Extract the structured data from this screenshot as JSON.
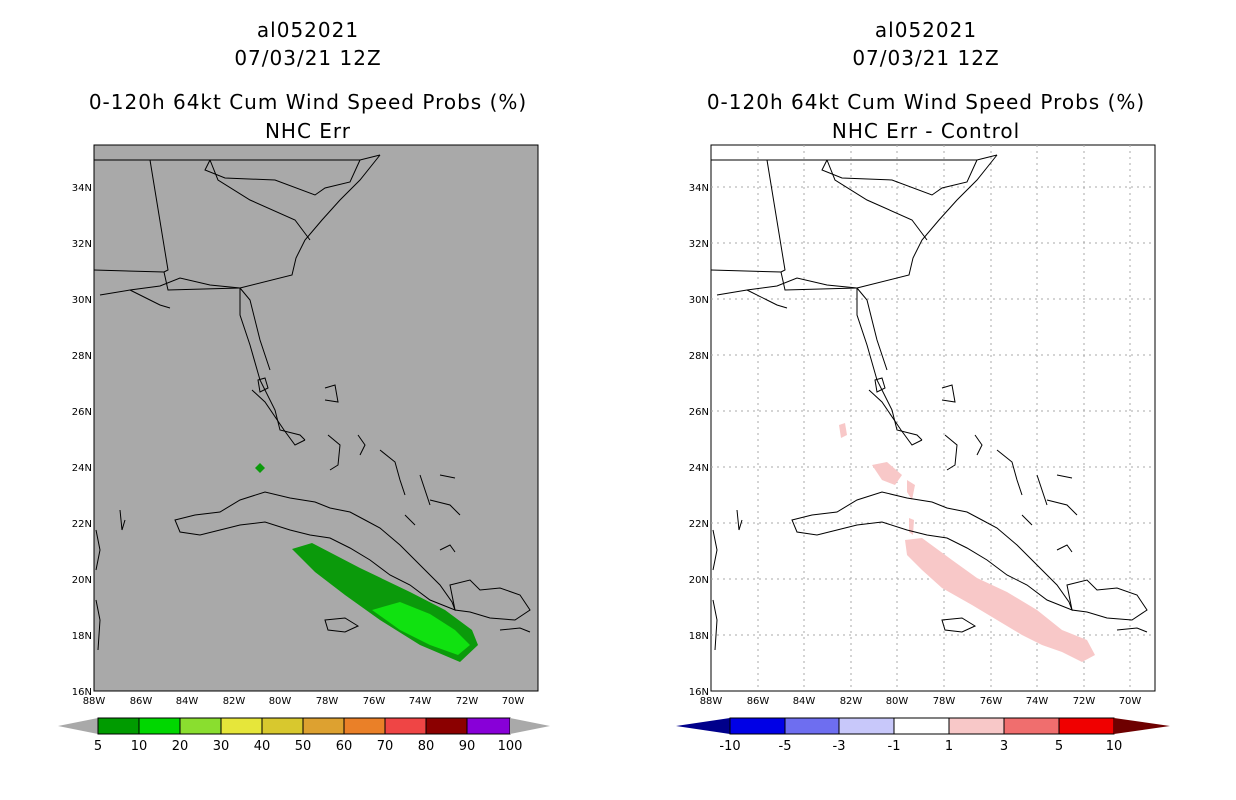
{
  "left_panel": {
    "storm_id": "al052021",
    "date": "07/03/21 12Z",
    "product": "0-120h 64kt Cum Wind Speed Probs (%)",
    "subtitle": "NHC Err",
    "background_color": "#a9a9a9",
    "swath_colors": {
      "outer": "#0b9a0b",
      "inner": "#10e210"
    }
  },
  "right_panel": {
    "storm_id": "al052021",
    "date": "07/03/21 12Z",
    "product": "0-120h 64kt Cum Wind Speed Probs (%)",
    "subtitle": "NHC Err - Control",
    "background_color": "#ffffff",
    "swath_color": "#f8c8c8"
  },
  "axes": {
    "lat_labels": [
      "34N",
      "32N",
      "30N",
      "28N",
      "26N",
      "24N",
      "22N",
      "20N",
      "18N",
      "16N"
    ],
    "lon_labels": [
      "88W",
      "86W",
      "84W",
      "82W",
      "80W",
      "78W",
      "76W",
      "74W",
      "72W",
      "70W"
    ]
  },
  "left_colorbar": {
    "labels": [
      "5",
      "10",
      "20",
      "30",
      "40",
      "50",
      "60",
      "70",
      "80",
      "90",
      "100"
    ],
    "colors": [
      "#009b00",
      "#00d700",
      "#8ade2f",
      "#e6e63a",
      "#d8c82e",
      "#dda130",
      "#ea8028",
      "#ef4545",
      "#8b0000",
      "#8800d8"
    ],
    "end_color": "#a9a9a9"
  },
  "right_colorbar": {
    "labels": [
      "-10",
      "-5",
      "-3",
      "-1",
      "1",
      "3",
      "5",
      "10"
    ],
    "colors": [
      "#0000e6",
      "#6e6ef0",
      "#c8c8fa",
      "#ffffff",
      "#f8c8c8",
      "#f06e6e",
      "#f00000"
    ],
    "low_end_color": "#00008b",
    "high_end_color": "#6e0000"
  },
  "chart_data": [
    {
      "type": "map",
      "title": "0-120h 64kt Cum Wind Speed Probs (%) — NHC Err",
      "lat_range": [
        16,
        35.5
      ],
      "lon_range": [
        -88,
        -69
      ],
      "legend_bins": [
        5,
        10,
        20,
        30,
        40,
        50,
        60,
        70,
        80,
        90,
        100
      ]
    },
    {
      "type": "map",
      "title": "0-120h 64kt Cum Wind Speed Probs (%) — NHC Err - Control",
      "lat_range": [
        16,
        35.5
      ],
      "lon_range": [
        -88,
        -69
      ],
      "legend_bins": [
        -10,
        -5,
        -3,
        -1,
        1,
        3,
        5,
        10
      ]
    }
  ]
}
